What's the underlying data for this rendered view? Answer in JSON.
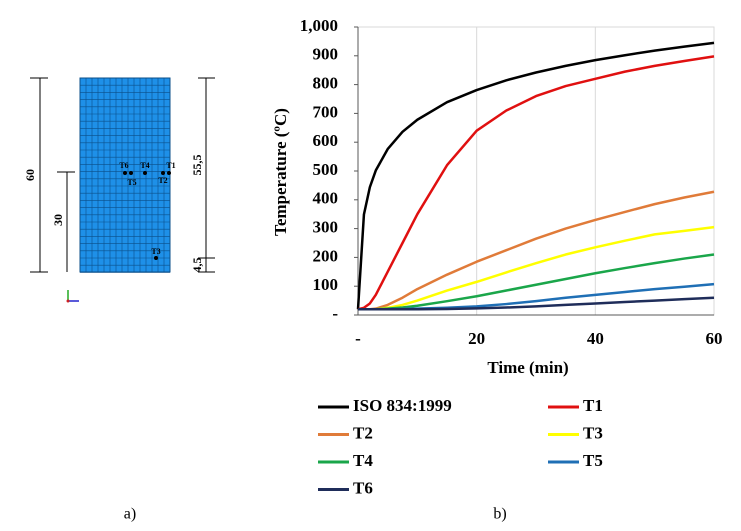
{
  "figure_a": {
    "label": "a)",
    "dimensions": [
      "60",
      "30",
      "55,5",
      "4,5"
    ],
    "points": [
      "T1",
      "T2",
      "T3",
      "T4",
      "T5",
      "T6"
    ]
  },
  "chart_data": {
    "type": "line",
    "label": "b)",
    "x_label": "Time (min)",
    "y_label": "Temperature (ºC)",
    "x": [
      0,
      1,
      2,
      3,
      5,
      7.5,
      10,
      15,
      20,
      25,
      30,
      35,
      40,
      45,
      50,
      55,
      60
    ],
    "xlim": [
      0,
      60
    ],
    "xticks": [
      {
        "value": 0,
        "label": "-"
      },
      20,
      40,
      60
    ],
    "ylim": [
      0,
      1000
    ],
    "yticks": [
      {
        "value": 0,
        "label": "-"
      },
      100,
      200,
      300,
      400,
      500,
      600,
      700,
      800,
      900,
      {
        "value": 1000,
        "label": "1,000"
      }
    ],
    "grid": "x",
    "legend": "bottom",
    "series": [
      {
        "name": "ISO 834:1999",
        "color": "#000000",
        "values": [
          20,
          349,
          444,
          502,
          576,
          636,
          678,
          739,
          781,
          815,
          842,
          865,
          885,
          902,
          918,
          932,
          945
        ]
      },
      {
        "name": "T1",
        "color": "#e01010",
        "values": [
          20,
          25,
          40,
          70,
          150,
          250,
          350,
          520,
          640,
          710,
          760,
          795,
          820,
          845,
          865,
          882,
          898
        ]
      },
      {
        "name": "T2",
        "color": "#e07b39",
        "values": [
          20,
          20,
          20,
          22,
          35,
          60,
          90,
          140,
          185,
          225,
          265,
          300,
          330,
          358,
          385,
          408,
          428
        ]
      },
      {
        "name": "T3",
        "color": "#ffff00",
        "values": [
          20,
          20,
          20,
          20,
          25,
          35,
          50,
          85,
          115,
          148,
          180,
          210,
          235,
          258,
          280,
          292,
          305
        ]
      },
      {
        "name": "T4",
        "color": "#1aa64a",
        "values": [
          20,
          20,
          20,
          20,
          22,
          26,
          32,
          48,
          65,
          85,
          105,
          125,
          145,
          163,
          180,
          196,
          210
        ]
      },
      {
        "name": "T5",
        "color": "#1f6fb5",
        "values": [
          20,
          20,
          20,
          20,
          20,
          21,
          22,
          25,
          30,
          38,
          48,
          60,
          70,
          80,
          90,
          98,
          107
        ]
      },
      {
        "name": "T6",
        "color": "#1f2d5a",
        "values": [
          20,
          20,
          20,
          20,
          20,
          20,
          20,
          21,
          23,
          26,
          30,
          35,
          40,
          45,
          50,
          55,
          60
        ]
      }
    ]
  }
}
